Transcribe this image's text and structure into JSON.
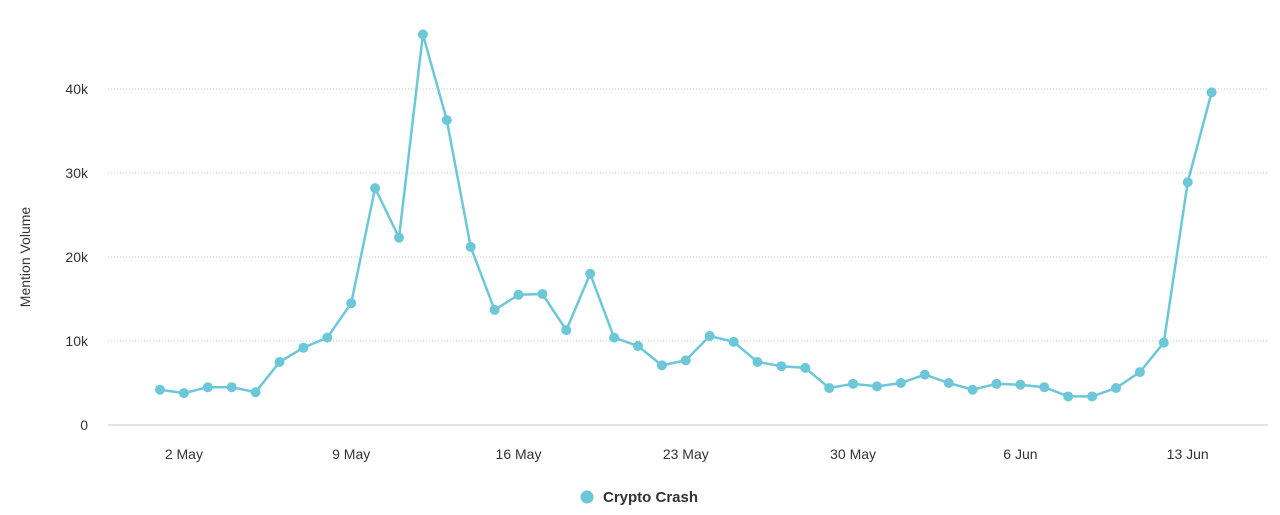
{
  "chart_data": {
    "type": "line",
    "title": "",
    "xlabel": "",
    "ylabel": "Mention Volume",
    "ylim": [
      0,
      47000
    ],
    "y_ticks": [
      0,
      10000,
      20000,
      30000,
      40000
    ],
    "y_tick_labels": [
      "0",
      "10k",
      "20k",
      "30k",
      "40k"
    ],
    "x_tick_labels": [
      "2 May",
      "9 May",
      "16 May",
      "23 May",
      "30 May",
      "6 Jun",
      "13 Jun"
    ],
    "x_tick_day_index": [
      1,
      8,
      15,
      22,
      29,
      36,
      43
    ],
    "x_start": "1 May",
    "grid": true,
    "legend_position": "bottom-center",
    "series": [
      {
        "name": "Crypto Crash",
        "color": "#6cc7d9",
        "values": [
          4200,
          3800,
          4500,
          4500,
          3900,
          7500,
          9200,
          10400,
          14500,
          28200,
          22300,
          46500,
          36300,
          21200,
          13700,
          15500,
          15600,
          11300,
          18000,
          10400,
          9400,
          7100,
          7700,
          10600,
          9900,
          7500,
          7000,
          6800,
          4400,
          4900,
          4600,
          5000,
          6000,
          5000,
          4200,
          4900,
          4800,
          4500,
          3400,
          3400,
          4400,
          6300,
          9800,
          28900,
          39600
        ]
      }
    ]
  }
}
